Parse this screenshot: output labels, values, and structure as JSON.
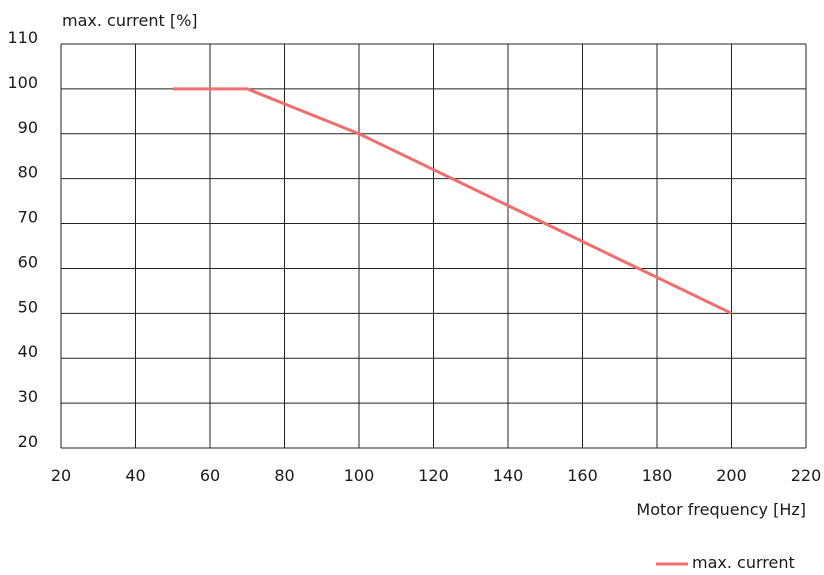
{
  "chart_data": {
    "type": "line",
    "title": "",
    "xlabel": "Motor frequency [Hz]",
    "ylabel": "max. current [%]",
    "xlim": [
      20,
      220
    ],
    "ylim": [
      20,
      110
    ],
    "x_ticks": [
      20,
      40,
      60,
      80,
      100,
      120,
      140,
      160,
      180,
      200,
      220
    ],
    "y_ticks": [
      20,
      30,
      40,
      50,
      60,
      70,
      80,
      90,
      100,
      110
    ],
    "grid": true,
    "legend_position": "bottom-right",
    "series": [
      {
        "name": "max. current",
        "color": "#f26d6d",
        "x": [
          50,
          70,
          100,
          200
        ],
        "y": [
          100,
          100,
          90,
          50
        ]
      }
    ]
  }
}
